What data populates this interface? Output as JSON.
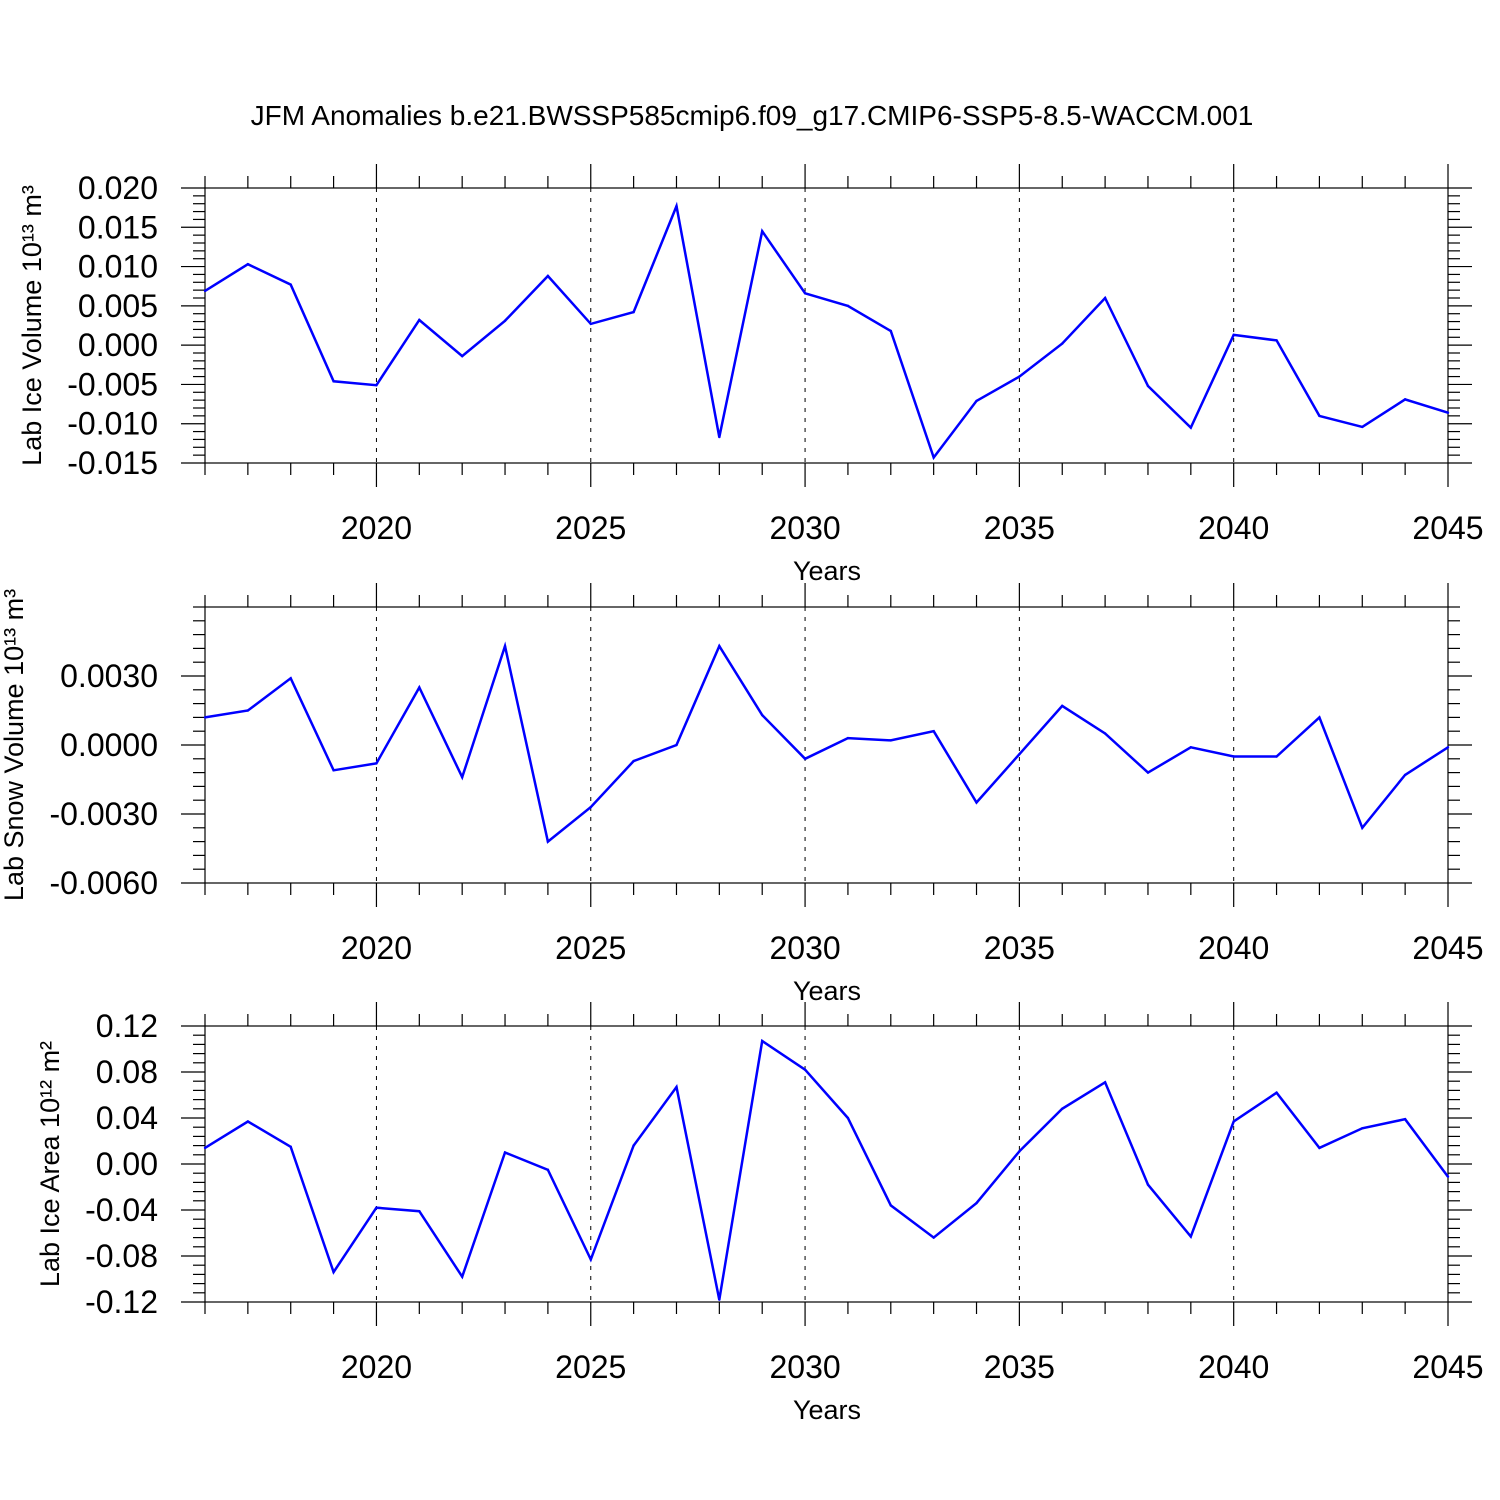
{
  "title": "JFM Anomalies b.e21.BWSSP585cmip6.f09_g17.CMIP6-SSP5-8.5-WACCM.001",
  "line_color": "#0000ff",
  "chart_data": [
    {
      "type": "line",
      "ylabel": "Lab Ice Volume",
      "ylabel_unit": "10¹³ m³",
      "xlabel": "Years",
      "xlim": [
        2016,
        2045
      ],
      "ylim": [
        -0.015,
        0.02
      ],
      "xticks": [
        2020,
        2025,
        2030,
        2035,
        2040,
        2045
      ],
      "xtick_labels": [
        "2020",
        "2025",
        "2030",
        "2035",
        "2040",
        "2045"
      ],
      "yticks": [
        -0.015,
        -0.01,
        -0.005,
        0.0,
        0.005,
        0.01,
        0.015,
        0.02
      ],
      "ytick_labels": [
        "-0.015",
        "-0.010",
        "-0.005",
        "0.000",
        "0.005",
        "0.010",
        "0.015",
        "0.020"
      ],
      "grid": "dashed vertical at major x ticks",
      "x": [
        2016,
        2017,
        2018,
        2019,
        2020,
        2021,
        2022,
        2023,
        2024,
        2025,
        2026,
        2027,
        2028,
        2029,
        2030,
        2031,
        2032,
        2033,
        2034,
        2035,
        2036,
        2037,
        2038,
        2039,
        2040,
        2041,
        2042,
        2043,
        2044,
        2045
      ],
      "y": [
        0.0069,
        0.0103,
        0.0077,
        -0.0046,
        -0.0051,
        0.0032,
        -0.0014,
        0.0031,
        0.0088,
        0.0027,
        0.0042,
        0.0177,
        -0.0117,
        0.0145,
        0.0066,
        0.005,
        0.0018,
        -0.0143,
        -0.0071,
        -0.004,
        0.0002,
        0.006,
        -0.0052,
        -0.0105,
        0.0013,
        0.0006,
        -0.009,
        -0.0104,
        -0.0069,
        -0.0086
      ]
    },
    {
      "type": "line",
      "ylabel": "Lab Snow Volume",
      "ylabel_unit": "10¹³ m³",
      "xlabel": "Years",
      "xlim": [
        2016,
        2045
      ],
      "ylim": [
        -0.006,
        0.006
      ],
      "xticks": [
        2020,
        2025,
        2030,
        2035,
        2040,
        2045
      ],
      "xtick_labels": [
        "2020",
        "2025",
        "2030",
        "2035",
        "2040",
        "2045"
      ],
      "yticks": [
        -0.006,
        -0.003,
        0.0,
        0.003
      ],
      "ytick_labels": [
        "-0.0060",
        "-0.0030",
        "0.0000",
        "0.0030"
      ],
      "grid": "dashed vertical at major x ticks",
      "x": [
        2016,
        2017,
        2018,
        2019,
        2020,
        2021,
        2022,
        2023,
        2024,
        2025,
        2026,
        2027,
        2028,
        2029,
        2030,
        2031,
        2032,
        2033,
        2034,
        2035,
        2036,
        2037,
        2038,
        2039,
        2040,
        2041,
        2042,
        2043,
        2044,
        2045
      ],
      "y": [
        0.0012,
        0.0015,
        0.0029,
        -0.0011,
        -0.0008,
        0.0025,
        -0.0014,
        0.0043,
        -0.0042,
        -0.0027,
        -0.0007,
        0.0,
        0.0043,
        0.0013,
        -0.0006,
        0.0003,
        0.0002,
        0.0006,
        -0.0025,
        -0.0004,
        0.0017,
        0.0005,
        -0.0012,
        -0.0001,
        -0.0005,
        -0.0005,
        0.0012,
        -0.0036,
        -0.0013,
        -0.0001
      ]
    },
    {
      "type": "line",
      "ylabel": "Lab Ice Area",
      "ylabel_unit": "10¹² m²",
      "xlabel": "Years",
      "xlim": [
        2016,
        2045
      ],
      "ylim": [
        -0.12,
        0.12
      ],
      "xticks": [
        2020,
        2025,
        2030,
        2035,
        2040,
        2045
      ],
      "xtick_labels": [
        "2020",
        "2025",
        "2030",
        "2035",
        "2040",
        "2045"
      ],
      "yticks": [
        -0.12,
        -0.08,
        -0.04,
        0.0,
        0.04,
        0.08,
        0.12
      ],
      "ytick_labels": [
        "-0.12",
        "-0.08",
        "-0.04",
        "0.00",
        "0.04",
        "0.08",
        "0.12"
      ],
      "grid": "dashed vertical at major x ticks",
      "x": [
        2016,
        2017,
        2018,
        2019,
        2020,
        2021,
        2022,
        2023,
        2024,
        2025,
        2026,
        2027,
        2028,
        2029,
        2030,
        2031,
        2032,
        2033,
        2034,
        2035,
        2036,
        2037,
        2038,
        2039,
        2040,
        2041,
        2042,
        2043,
        2044,
        2045
      ],
      "y": [
        0.014,
        0.037,
        0.015,
        -0.094,
        -0.038,
        -0.041,
        -0.098,
        0.01,
        -0.005,
        -0.083,
        0.016,
        0.067,
        -0.118,
        0.107,
        0.082,
        0.04,
        -0.036,
        -0.064,
        -0.034,
        0.011,
        0.048,
        0.071,
        -0.018,
        -0.063,
        0.037,
        0.062,
        0.014,
        0.031,
        0.039,
        -0.011
      ]
    }
  ]
}
